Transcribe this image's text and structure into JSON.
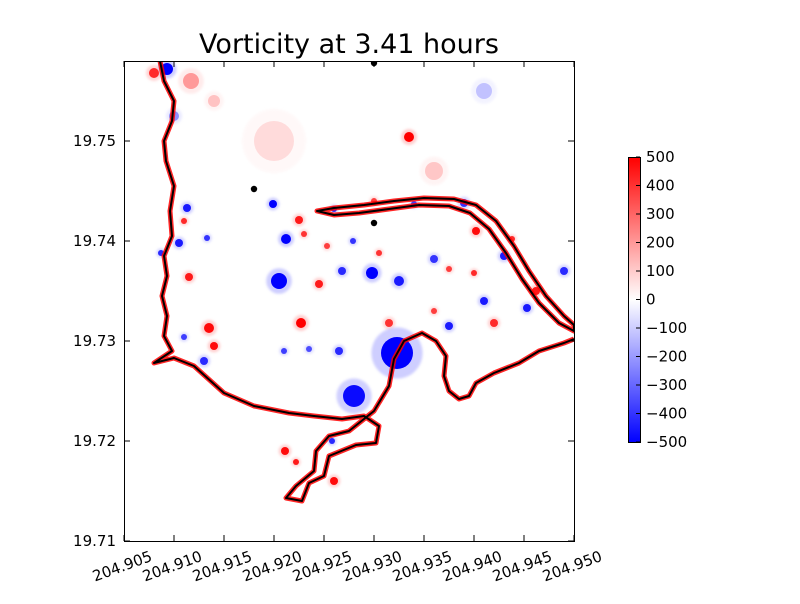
{
  "chart_data": {
    "type": "heatmap",
    "title": "Vorticity at 3.41 hours",
    "xlabel": "",
    "ylabel": "",
    "xlim": [
      204.905,
      204.95
    ],
    "ylim": [
      19.71,
      19.758
    ],
    "x_ticks": [
      "204.905",
      "204.910",
      "204.915",
      "204.920",
      "204.925",
      "204.930",
      "204.935",
      "204.940",
      "204.945",
      "204.950"
    ],
    "x_tick_values": [
      204.905,
      204.91,
      204.915,
      204.92,
      204.925,
      204.93,
      204.935,
      204.94,
      204.945,
      204.95
    ],
    "y_ticks": [
      "19.71",
      "19.72",
      "19.73",
      "19.74",
      "19.75"
    ],
    "y_tick_values": [
      19.71,
      19.72,
      19.73,
      19.74,
      19.75
    ],
    "colorbar": {
      "min": -500,
      "max": 500,
      "ticks": [
        "500",
        "400",
        "300",
        "200",
        "100",
        "0",
        "−100",
        "−200",
        "−300",
        "−400",
        "−500"
      ],
      "tick_values": [
        500,
        400,
        300,
        200,
        100,
        0,
        -100,
        -200,
        -300,
        -400,
        -500
      ],
      "colormap": "bwr",
      "low_color": "#0000ff",
      "mid_color": "#ffffff",
      "high_color": "#ff0000"
    },
    "coastline_color": "#000000",
    "marker_points": [
      {
        "x": 204.93,
        "y": 19.7578
      },
      {
        "x": 204.918,
        "y": 19.7452
      },
      {
        "x": 204.93,
        "y": 19.7418
      }
    ],
    "vortices": [
      {
        "x": 204.9335,
        "y": 19.7504,
        "r": 0.0005,
        "v": 500
      },
      {
        "x": 204.9199,
        "y": 19.7437,
        "r": 0.0004,
        "v": -500
      },
      {
        "x": 204.9225,
        "y": 19.7421,
        "r": 0.0004,
        "v": 450
      },
      {
        "x": 204.9212,
        "y": 19.7402,
        "r": 0.0005,
        "v": -500
      },
      {
        "x": 204.923,
        "y": 19.7407,
        "r": 0.0003,
        "v": 400
      },
      {
        "x": 204.9205,
        "y": 19.736,
        "r": 0.0008,
        "v": -500
      },
      {
        "x": 204.9245,
        "y": 19.7357,
        "r": 0.0004,
        "v": 450
      },
      {
        "x": 204.9298,
        "y": 19.7368,
        "r": 0.0006,
        "v": -500
      },
      {
        "x": 204.9325,
        "y": 19.736,
        "r": 0.0005,
        "v": -450
      },
      {
        "x": 204.9268,
        "y": 19.737,
        "r": 0.0004,
        "v": -420
      },
      {
        "x": 204.9305,
        "y": 19.7388,
        "r": 0.0003,
        "v": 400
      },
      {
        "x": 204.9279,
        "y": 19.74,
        "r": 0.0003,
        "v": -400
      },
      {
        "x": 204.9253,
        "y": 19.7395,
        "r": 0.0003,
        "v": 380
      },
      {
        "x": 204.9227,
        "y": 19.7318,
        "r": 0.0005,
        "v": 500
      },
      {
        "x": 204.9315,
        "y": 19.7318,
        "r": 0.0004,
        "v": 400
      },
      {
        "x": 204.9323,
        "y": 19.7288,
        "r": 0.0016,
        "v": -500
      },
      {
        "x": 204.928,
        "y": 19.7245,
        "r": 0.0011,
        "v": -480
      },
      {
        "x": 204.9265,
        "y": 19.729,
        "r": 0.0004,
        "v": -420
      },
      {
        "x": 204.921,
        "y": 19.729,
        "r": 0.0003,
        "v": -380
      },
      {
        "x": 204.9235,
        "y": 19.7292,
        "r": 0.0003,
        "v": -350
      },
      {
        "x": 204.9375,
        "y": 19.7315,
        "r": 0.0004,
        "v": -450
      },
      {
        "x": 204.936,
        "y": 19.733,
        "r": 0.0003,
        "v": 380
      },
      {
        "x": 204.941,
        "y": 19.734,
        "r": 0.0004,
        "v": -450
      },
      {
        "x": 204.942,
        "y": 19.7318,
        "r": 0.0004,
        "v": 420
      },
      {
        "x": 204.943,
        "y": 19.7385,
        "r": 0.0004,
        "v": -450
      },
      {
        "x": 204.9402,
        "y": 19.741,
        "r": 0.0004,
        "v": 480
      },
      {
        "x": 204.9438,
        "y": 19.7402,
        "r": 0.0003,
        "v": 420
      },
      {
        "x": 204.94,
        "y": 19.7368,
        "r": 0.0003,
        "v": 420
      },
      {
        "x": 204.9462,
        "y": 19.735,
        "r": 0.0004,
        "v": 450
      },
      {
        "x": 204.9453,
        "y": 19.7333,
        "r": 0.0004,
        "v": -450
      },
      {
        "x": 204.949,
        "y": 19.737,
        "r": 0.0004,
        "v": -420
      },
      {
        "x": 204.936,
        "y": 19.7382,
        "r": 0.0004,
        "v": -400
      },
      {
        "x": 204.9375,
        "y": 19.7372,
        "r": 0.0003,
        "v": 380
      },
      {
        "x": 204.939,
        "y": 19.7438,
        "r": 0.0004,
        "v": -400
      },
      {
        "x": 204.926,
        "y": 19.7432,
        "r": 0.0003,
        "v": -420
      },
      {
        "x": 204.93,
        "y": 19.744,
        "r": 0.0003,
        "v": 380
      },
      {
        "x": 204.934,
        "y": 19.7437,
        "r": 0.0003,
        "v": -380
      },
      {
        "x": 204.9113,
        "y": 19.7433,
        "r": 0.0004,
        "v": -450
      },
      {
        "x": 204.911,
        "y": 19.742,
        "r": 0.0003,
        "v": 420
      },
      {
        "x": 204.9105,
        "y": 19.7398,
        "r": 0.0004,
        "v": -450
      },
      {
        "x": 204.9087,
        "y": 19.7388,
        "r": 0.0003,
        "v": -420
      },
      {
        "x": 204.9133,
        "y": 19.7403,
        "r": 0.0003,
        "v": -400
      },
      {
        "x": 204.9115,
        "y": 19.7364,
        "r": 0.0004,
        "v": 450
      },
      {
        "x": 204.9135,
        "y": 19.7313,
        "r": 0.0005,
        "v": 480
      },
      {
        "x": 204.914,
        "y": 19.7295,
        "r": 0.0004,
        "v": 480
      },
      {
        "x": 204.911,
        "y": 19.7304,
        "r": 0.0003,
        "v": -380
      },
      {
        "x": 204.913,
        "y": 19.728,
        "r": 0.0004,
        "v": -420
      },
      {
        "x": 204.9211,
        "y": 19.719,
        "r": 0.0004,
        "v": 480
      },
      {
        "x": 204.9222,
        "y": 19.7179,
        "r": 0.0003,
        "v": 450
      },
      {
        "x": 204.926,
        "y": 19.716,
        "r": 0.0004,
        "v": 480
      },
      {
        "x": 204.9258,
        "y": 19.72,
        "r": 0.0003,
        "v": -420
      },
      {
        "x": 204.9093,
        "y": 19.7572,
        "r": 0.0006,
        "v": -500
      },
      {
        "x": 204.908,
        "y": 19.7568,
        "r": 0.0005,
        "v": 420
      },
      {
        "x": 204.9117,
        "y": 19.756,
        "r": 0.0008,
        "v": 200
      },
      {
        "x": 204.914,
        "y": 19.754,
        "r": 0.0006,
        "v": 120
      },
      {
        "x": 204.91,
        "y": 19.7525,
        "r": 0.0005,
        "v": -220
      },
      {
        "x": 204.941,
        "y": 19.755,
        "r": 0.0008,
        "v": -120
      },
      {
        "x": 204.936,
        "y": 19.747,
        "r": 0.0009,
        "v": 110
      },
      {
        "x": 204.92,
        "y": 19.75,
        "r": 0.002,
        "v": 70
      }
    ],
    "coastline": [
      [
        204.9086,
        19.758
      ],
      [
        204.909,
        19.756
      ],
      [
        204.91,
        19.754
      ],
      [
        204.9098,
        19.752
      ],
      [
        204.909,
        19.75
      ],
      [
        204.9092,
        19.748
      ],
      [
        204.91,
        19.7455
      ],
      [
        204.9096,
        19.743
      ],
      [
        204.9098,
        19.7405
      ],
      [
        204.909,
        19.7385
      ],
      [
        204.9093,
        19.7365
      ],
      [
        204.9088,
        19.7345
      ],
      [
        204.9093,
        19.7325
      ],
      [
        204.909,
        19.7305
      ],
      [
        204.9098,
        19.729
      ],
      [
        204.908,
        19.7278
      ],
      [
        204.91,
        19.7283
      ],
      [
        204.912,
        19.7275
      ],
      [
        204.915,
        19.7248
      ],
      [
        204.918,
        19.7235
      ],
      [
        204.9215,
        19.7228
      ],
      [
        204.924,
        19.7225
      ],
      [
        204.9268,
        19.7222
      ],
      [
        204.929,
        19.7225
      ],
      [
        204.9305,
        19.7215
      ],
      [
        204.9302,
        19.7198
      ],
      [
        204.9282,
        19.7196
      ],
      [
        204.9255,
        19.7185
      ],
      [
        204.925,
        19.7165
      ],
      [
        204.9235,
        19.7158
      ],
      [
        204.9228,
        19.714
      ],
      [
        204.9212,
        19.7143
      ],
      [
        204.9222,
        19.7155
      ],
      [
        204.924,
        19.717
      ],
      [
        204.9242,
        19.719
      ],
      [
        204.9255,
        19.7205
      ],
      [
        204.9275,
        19.721
      ],
      [
        204.93,
        19.723
      ],
      [
        204.9315,
        19.7255
      ],
      [
        204.932,
        19.7282
      ],
      [
        204.933,
        19.73
      ],
      [
        204.9348,
        19.7308
      ],
      [
        204.9362,
        19.73
      ],
      [
        204.9372,
        19.7285
      ],
      [
        204.937,
        19.7265
      ],
      [
        204.9375,
        19.725
      ],
      [
        204.9385,
        19.7242
      ],
      [
        204.9395,
        19.7245
      ],
      [
        204.9402,
        19.7258
      ],
      [
        204.942,
        19.7268
      ],
      [
        204.9445,
        19.7278
      ],
      [
        204.9465,
        19.729
      ],
      [
        204.949,
        19.7298
      ],
      [
        204.95,
        19.7302
      ]
    ],
    "reef": [
      [
        204.9243,
        19.743
      ],
      [
        204.926,
        19.7433
      ],
      [
        204.929,
        19.7436
      ],
      [
        204.932,
        19.744
      ],
      [
        204.935,
        19.7443
      ],
      [
        204.938,
        19.7442
      ],
      [
        204.9402,
        19.7436
      ],
      [
        204.9422,
        19.742
      ],
      [
        204.944,
        19.7395
      ],
      [
        204.9455,
        19.737
      ],
      [
        204.9472,
        19.7345
      ],
      [
        204.949,
        19.7325
      ],
      [
        204.95,
        19.7316
      ],
      [
        204.95,
        19.731
      ],
      [
        204.9485,
        19.7318
      ],
      [
        204.9465,
        19.7338
      ],
      [
        204.9448,
        19.7362
      ],
      [
        204.9432,
        19.7388
      ],
      [
        204.9415,
        19.7412
      ],
      [
        204.9396,
        19.7428
      ],
      [
        204.9375,
        19.7435
      ],
      [
        204.9345,
        19.7436
      ],
      [
        204.9315,
        19.7432
      ],
      [
        204.9285,
        19.7428
      ],
      [
        204.926,
        19.7426
      ],
      [
        204.9243,
        19.743
      ]
    ]
  }
}
